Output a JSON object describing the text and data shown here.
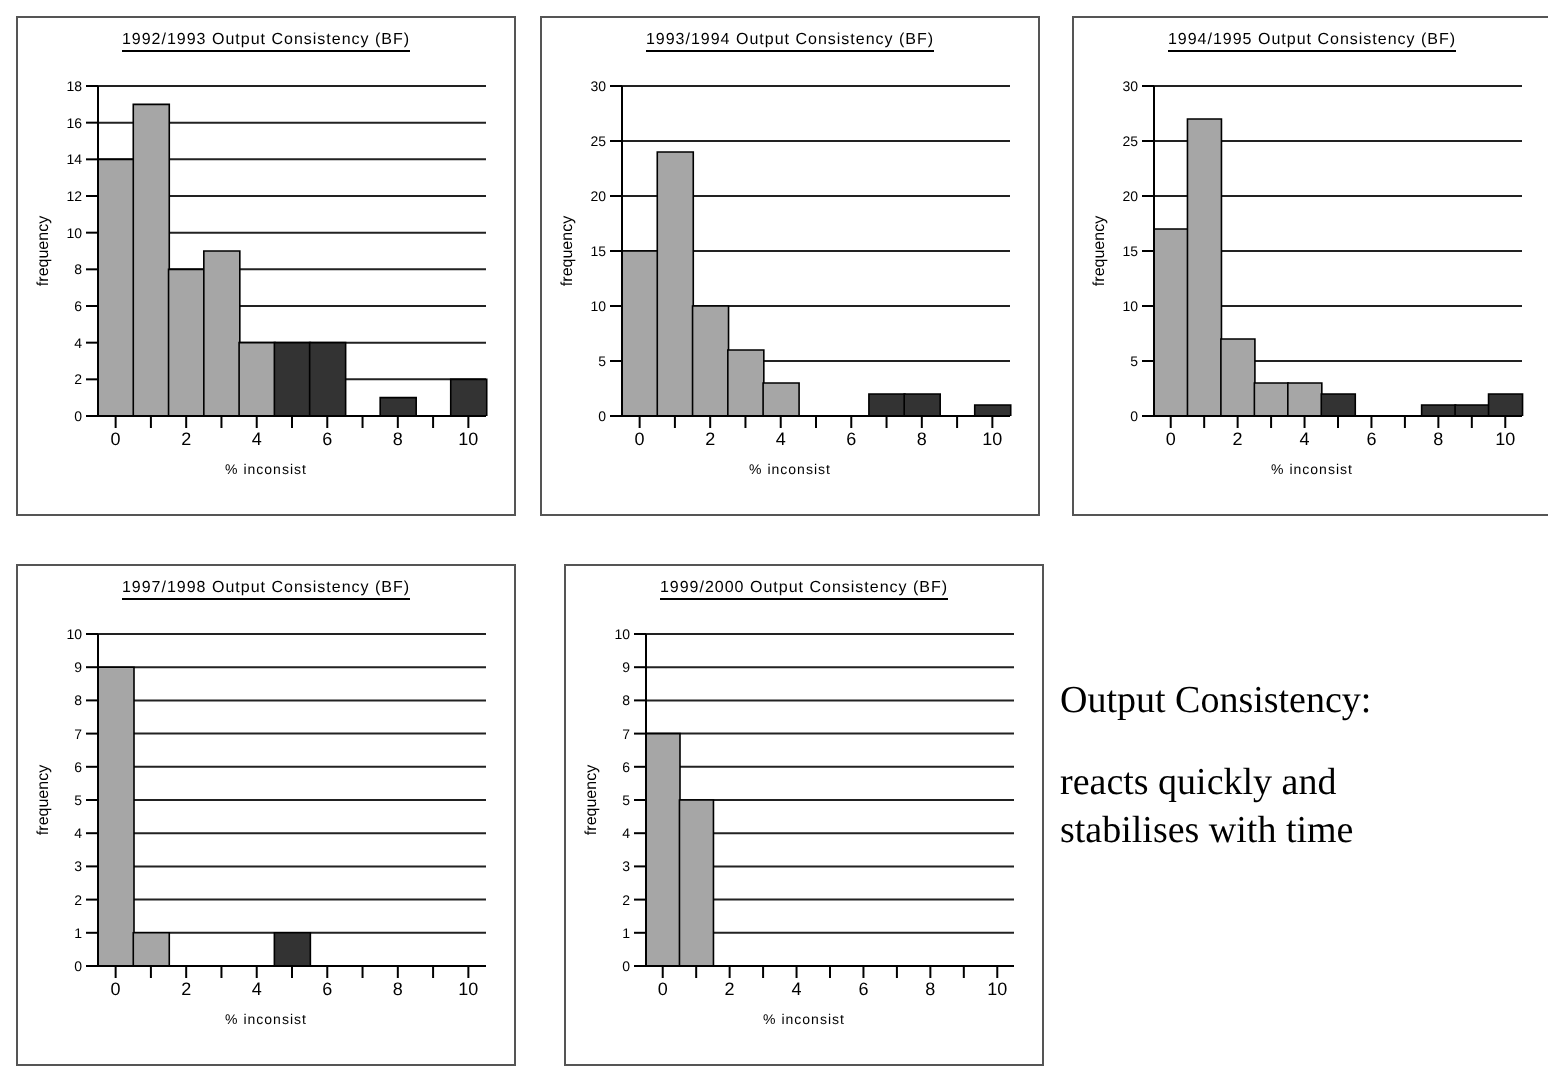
{
  "chart_data": [
    {
      "type": "bar",
      "title": "1992/1993 Output Consistency (BF)",
      "xlabel": "% inconsist",
      "ylabel": "frequency",
      "categories": [
        "0",
        null,
        "2",
        null,
        "4",
        null,
        "6",
        null,
        "8",
        null,
        "10"
      ],
      "values": [
        14,
        17,
        8,
        9,
        4,
        4,
        4,
        0,
        1,
        0,
        2
      ],
      "colors": [
        "#a6a6a6",
        "#a6a6a6",
        "#a6a6a6",
        "#a6a6a6",
        "#a6a6a6",
        "#333333",
        "#333333",
        "#333333",
        "#333333",
        "#333333",
        "#333333"
      ],
      "ylim": [
        0,
        18
      ],
      "yticks": [
        0,
        2,
        4,
        6,
        8,
        10,
        12,
        14,
        16,
        18
      ],
      "grid": "y",
      "legend": false
    },
    {
      "type": "bar",
      "title": "1993/1994 Output Consistency (BF)",
      "xlabel": "% inconsist",
      "ylabel": "frequency",
      "categories": [
        "0",
        null,
        "2",
        null,
        "4",
        null,
        "6",
        null,
        "8",
        null,
        "10"
      ],
      "values": [
        15,
        24,
        10,
        6,
        3,
        0,
        0,
        2,
        2,
        0,
        1
      ],
      "colors": [
        "#a6a6a6",
        "#a6a6a6",
        "#a6a6a6",
        "#a6a6a6",
        "#a6a6a6",
        "#333333",
        "#333333",
        "#333333",
        "#333333",
        "#333333",
        "#333333"
      ],
      "ylim": [
        0,
        30
      ],
      "yticks": [
        0,
        5,
        10,
        15,
        20,
        25,
        30
      ],
      "grid": "y",
      "legend": false
    },
    {
      "type": "bar",
      "title": "1994/1995 Output Consistency (BF)",
      "xlabel": "% inconsist",
      "ylabel": "frequency",
      "categories": [
        "0",
        null,
        "2",
        null,
        "4",
        null,
        "6",
        null,
        "8",
        null,
        "10"
      ],
      "values": [
        17,
        27,
        7,
        3,
        3,
        2,
        0,
        0,
        1,
        1,
        2
      ],
      "colors": [
        "#a6a6a6",
        "#a6a6a6",
        "#a6a6a6",
        "#a6a6a6",
        "#a6a6a6",
        "#333333",
        "#333333",
        "#333333",
        "#333333",
        "#333333",
        "#333333"
      ],
      "ylim": [
        0,
        30
      ],
      "yticks": [
        0,
        5,
        10,
        15,
        20,
        25,
        30
      ],
      "grid": "y",
      "legend": false
    },
    {
      "type": "bar",
      "title": "1997/1998 Output Consistency (BF)",
      "xlabel": "% inconsist",
      "ylabel": "frequency",
      "categories": [
        "0",
        null,
        "2",
        null,
        "4",
        null,
        "6",
        null,
        "8",
        null,
        "10"
      ],
      "values": [
        9,
        1,
        0,
        0,
        0,
        1,
        0,
        0,
        0,
        0,
        0
      ],
      "colors": [
        "#a6a6a6",
        "#a6a6a6",
        "#a6a6a6",
        "#a6a6a6",
        "#a6a6a6",
        "#333333",
        "#333333",
        "#333333",
        "#333333",
        "#333333",
        "#333333"
      ],
      "ylim": [
        0,
        10
      ],
      "yticks": [
        0,
        1,
        2,
        3,
        4,
        5,
        6,
        7,
        8,
        9,
        10
      ],
      "grid": "y",
      "legend": false
    },
    {
      "type": "bar",
      "title": "1999/2000 Output Consistency (BF)",
      "xlabel": "% inconsist",
      "ylabel": "frequency",
      "categories": [
        "0",
        null,
        "2",
        null,
        "4",
        null,
        "6",
        null,
        "8",
        null,
        "10"
      ],
      "values": [
        7,
        5,
        0,
        0,
        0,
        0,
        0,
        0,
        0,
        0,
        0
      ],
      "colors": [
        "#a6a6a6",
        "#a6a6a6",
        "#a6a6a6",
        "#a6a6a6",
        "#a6a6a6",
        "#333333",
        "#333333",
        "#333333",
        "#333333",
        "#333333",
        "#333333"
      ],
      "ylim": [
        0,
        10
      ],
      "yticks": [
        0,
        1,
        2,
        3,
        4,
        5,
        6,
        7,
        8,
        9,
        10
      ],
      "grid": "y",
      "legend": false
    },
    {
      "type": "other",
      "title": "Output Consistency:",
      "annotations": [
        "reacts quickly and stabilises with time"
      ]
    }
  ]
}
